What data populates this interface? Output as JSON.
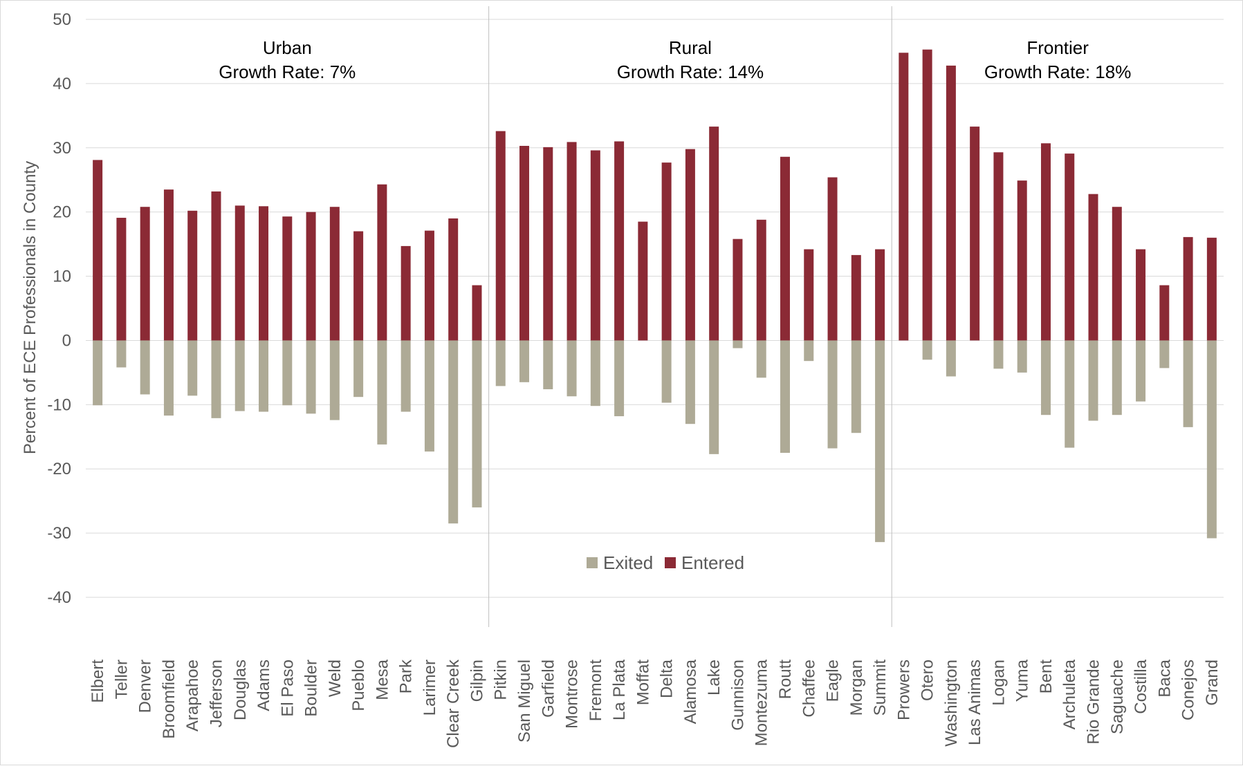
{
  "chart_data": {
    "type": "bar",
    "stacked": true,
    "ylabel": "Percent of ECE Professionals in County",
    "xlabel": "",
    "ylim": [
      -40,
      50
    ],
    "yticks": [
      50,
      40,
      30,
      20,
      10,
      0,
      -10,
      -20,
      -30,
      -40
    ],
    "grid": true,
    "legend_placement": "center",
    "colors": {
      "Exited": "#aeaa96",
      "Entered": "#8b2a35"
    },
    "categories": [
      "Elbert",
      "Teller",
      "Denver",
      "Broomfield",
      "Arapahoe",
      "Jefferson",
      "Douglas",
      "Adams",
      "El Paso",
      "Boulder",
      "Weld",
      "Pueblo",
      "Mesa",
      "Park",
      "Larimer",
      "Clear Creek",
      "Gilpin",
      "Pitkin",
      "San Miguel",
      "Garfield",
      "Montrose",
      "Fremont",
      "La Plata",
      "Moffat",
      "Delta",
      "Alamosa",
      "Lake",
      "Gunnison",
      "Montezuma",
      "Routt",
      "Chaffee",
      "Eagle",
      "Morgan",
      "Summit",
      "Prowers",
      "Otero",
      "Washington",
      "Las Animas",
      "Logan",
      "Yuma",
      "Bent",
      "Archuleta",
      "Rio Grande",
      "Saguache",
      "Costilla",
      "Baca",
      "Conejos",
      "Grand"
    ],
    "series": [
      {
        "name": "Exited",
        "values": [
          -10.1,
          -4.2,
          -8.4,
          -11.7,
          -8.6,
          -12.1,
          -11.0,
          -11.1,
          -10.1,
          -11.4,
          -12.4,
          -8.8,
          -16.2,
          -11.1,
          -17.3,
          -28.5,
          -26.0,
          -7.1,
          -6.5,
          -7.6,
          -8.7,
          -10.2,
          -11.8,
          0,
          -9.7,
          -13.0,
          -17.7,
          -1.2,
          -5.8,
          -17.5,
          -3.2,
          -16.8,
          -14.4,
          -31.4,
          0,
          -3.0,
          -5.6,
          0,
          -4.4,
          -5.0,
          -11.6,
          -16.7,
          -12.5,
          -11.6,
          -9.5,
          -4.3,
          -13.5,
          -30.8
        ]
      },
      {
        "name": "Entered",
        "values": [
          28.1,
          19.1,
          20.8,
          23.5,
          20.2,
          23.2,
          21.0,
          20.9,
          19.3,
          20.0,
          20.8,
          17.0,
          24.3,
          14.7,
          17.1,
          19.0,
          8.6,
          32.6,
          30.3,
          30.1,
          30.9,
          29.6,
          31.0,
          18.5,
          27.7,
          29.8,
          33.3,
          15.8,
          18.8,
          28.6,
          14.2,
          25.4,
          13.3,
          14.2,
          44.8,
          45.3,
          42.8,
          33.3,
          29.3,
          24.9,
          30.7,
          29.1,
          22.8,
          20.8,
          14.2,
          8.6,
          16.1,
          16.0
        ]
      }
    ],
    "groups": [
      {
        "name": "Urban",
        "subtitle": "Growth Rate: 7%",
        "count": 17
      },
      {
        "name": "Rural",
        "subtitle": "Growth Rate: 14%",
        "count": 17
      },
      {
        "name": "Frontier",
        "subtitle": "Growth Rate: 18%",
        "count": 14
      }
    ]
  }
}
